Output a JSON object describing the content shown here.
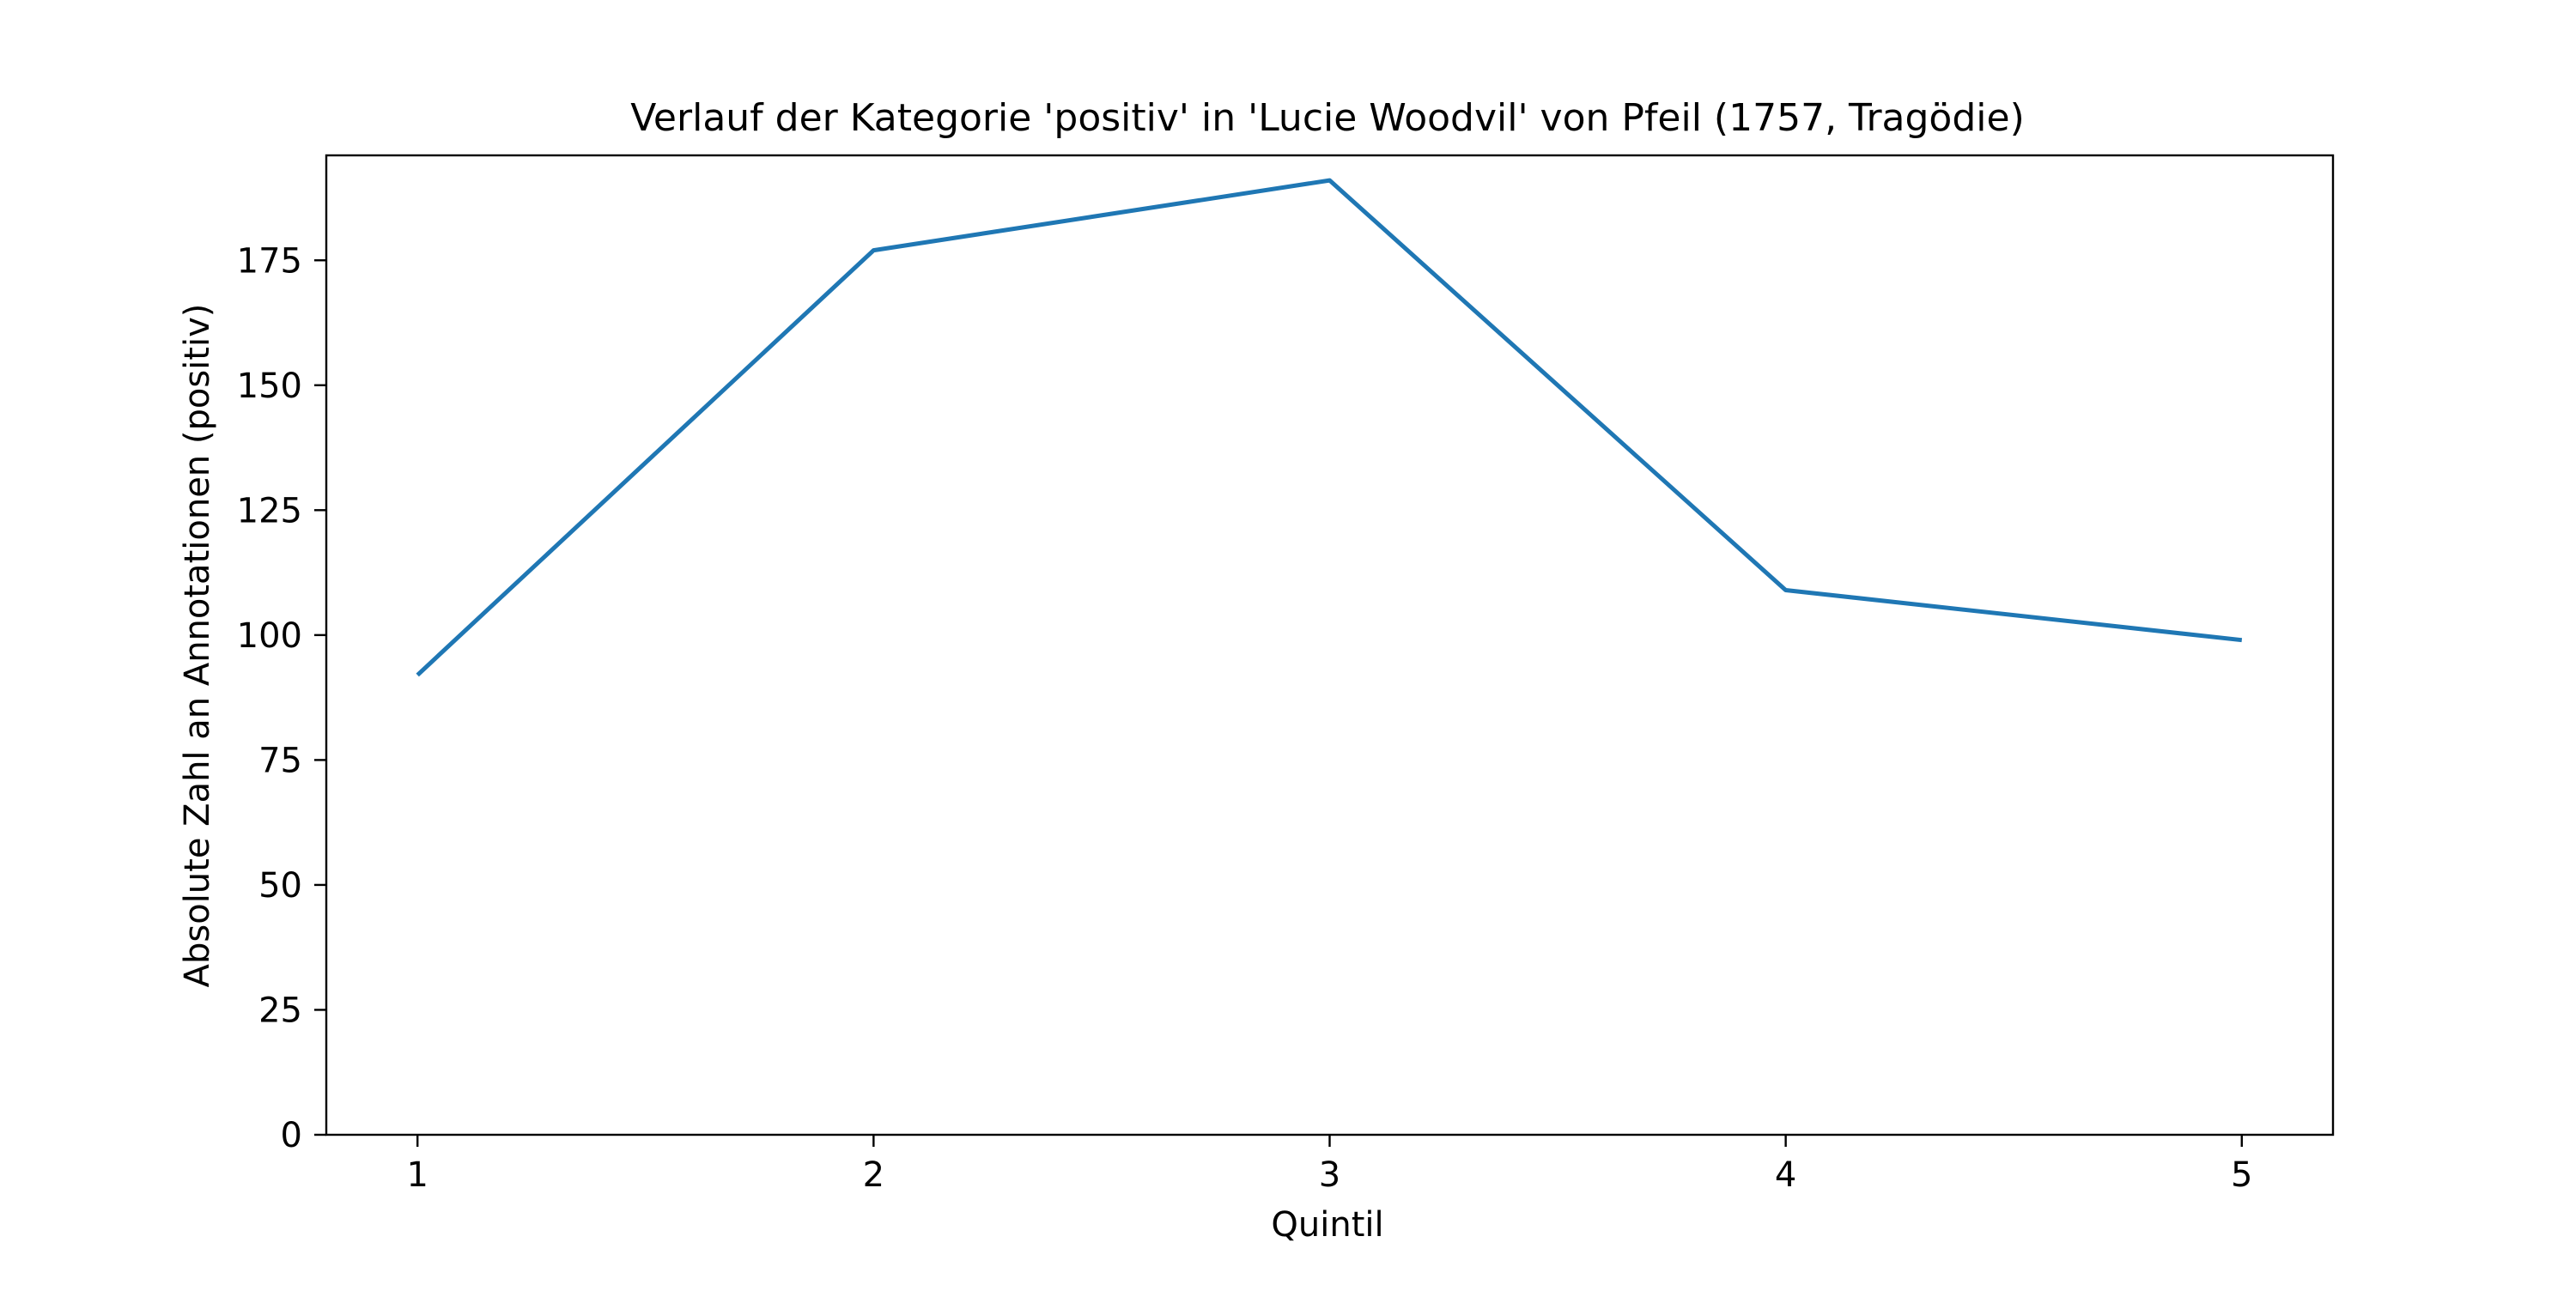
{
  "chart_data": {
    "type": "line",
    "title": "Verlauf der Kategorie 'positiv' in 'Lucie Woodvil' von Pfeil (1757, Tragödie)",
    "xlabel": "Quintil",
    "ylabel": "Absolute Zahl an Annotationen (positiv)",
    "x": [
      1,
      2,
      3,
      4,
      5
    ],
    "x_tick_labels": [
      "1",
      "2",
      "3",
      "4",
      "5"
    ],
    "xlim": [
      0.8,
      5.2
    ],
    "y_ticks": [
      0,
      25,
      50,
      75,
      100,
      125,
      150,
      175
    ],
    "y_tick_labels": [
      "0",
      "25",
      "50",
      "75",
      "100",
      "125",
      "150",
      "175"
    ],
    "ylim": [
      0,
      196
    ],
    "grid": false,
    "series": [
      {
        "values": [
          92,
          177,
          191,
          109,
          99
        ],
        "color": "#1f77b4"
      }
    ]
  }
}
